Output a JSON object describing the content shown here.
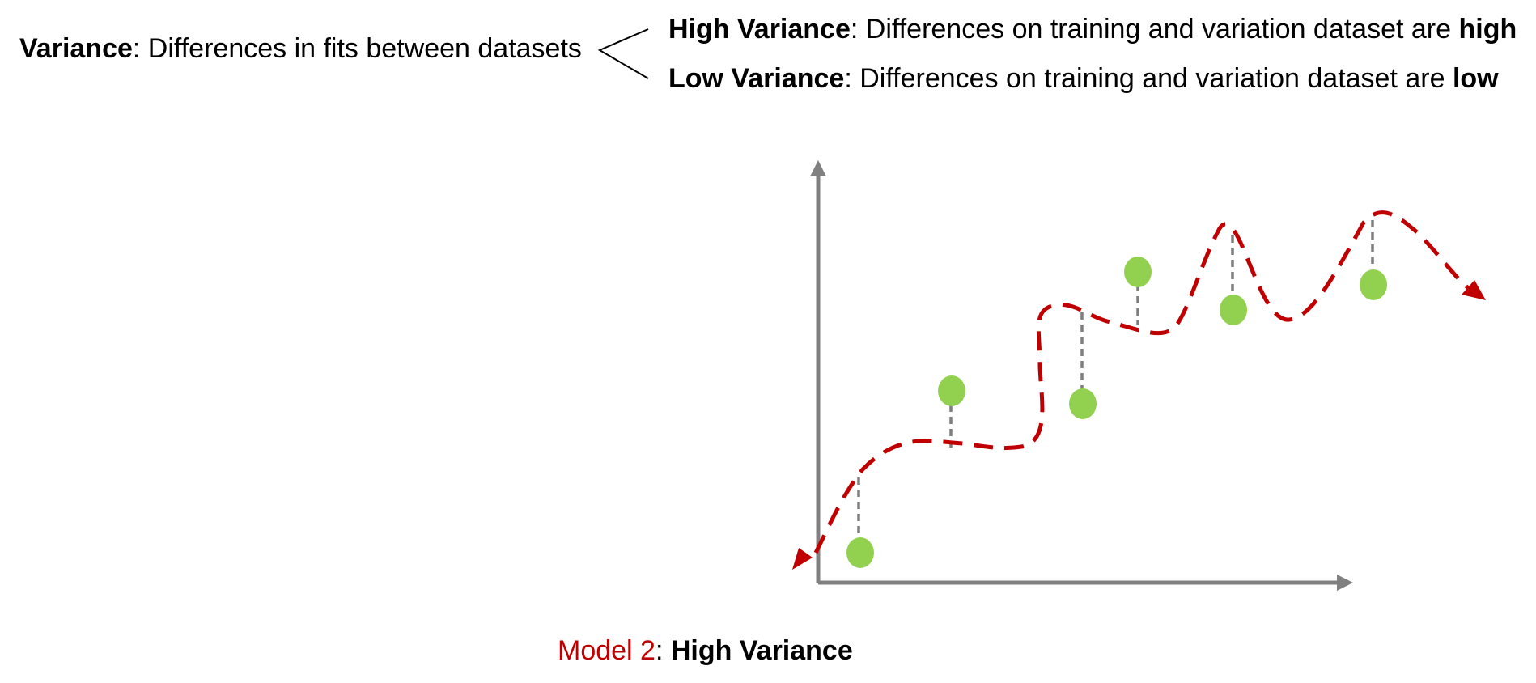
{
  "definition": {
    "term": "Variance",
    "sep": ":",
    "text": " Differences in fits between datasets"
  },
  "branches": [
    {
      "term": "High Variance",
      "sep": ":",
      "text": " Differences on training and variation dataset are ",
      "emph": "high"
    },
    {
      "term": "Low Variance",
      "sep": ":",
      "text": " Differences on training and variation dataset are ",
      "emph": "low"
    }
  ],
  "caption": {
    "model": "Model 2",
    "sep": ": ",
    "label": "High Variance"
  },
  "colors": {
    "axis": "#808080",
    "curve": "#c00000",
    "point": "#92d050",
    "residual": "#7f7f7f"
  }
}
